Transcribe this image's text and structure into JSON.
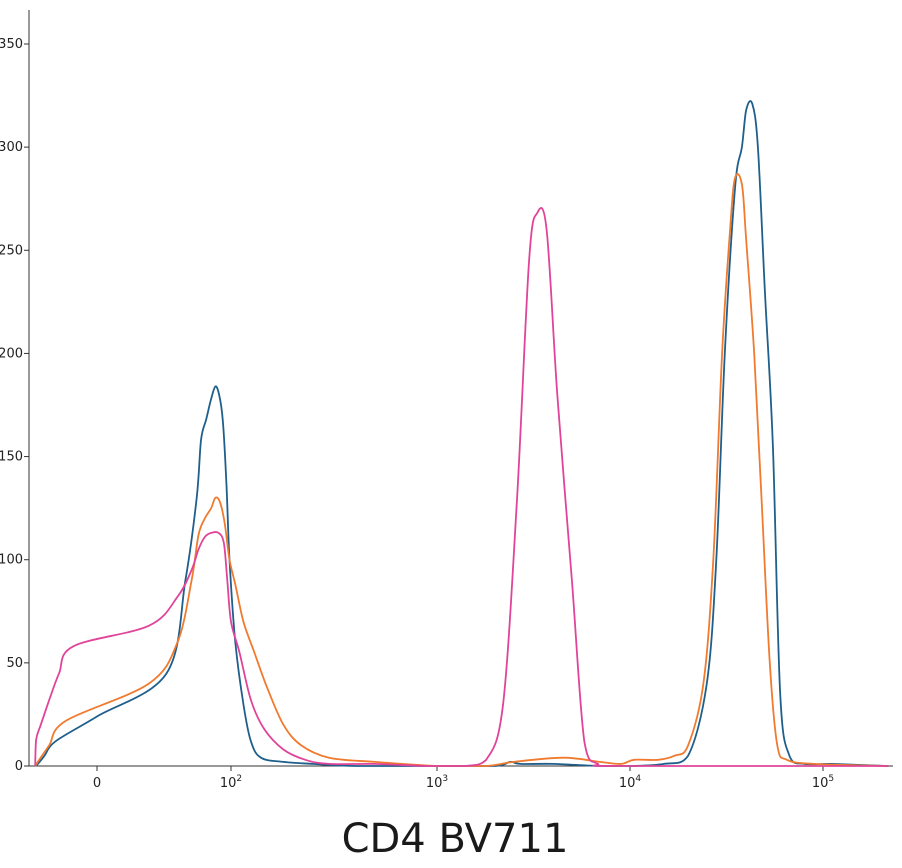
{
  "chart_data": {
    "type": "line",
    "title": "",
    "xlabel": "CD4 BV711",
    "ylabel": "",
    "x_scale": "biexponential",
    "xlim": [
      -40,
      210000
    ],
    "ylim": [
      0,
      350
    ],
    "grid": false,
    "legend": "none",
    "y_ticks": [
      0,
      50,
      100,
      150,
      200,
      250,
      300,
      350
    ],
    "x_ticks": [
      {
        "value": 0,
        "base": "0",
        "exp": ""
      },
      {
        "value": 100,
        "base": "10",
        "exp": "2"
      },
      {
        "value": 1000,
        "base": "10",
        "exp": "3"
      },
      {
        "value": 10000,
        "base": "10",
        "exp": "4"
      },
      {
        "value": 100000,
        "base": "10",
        "exp": "5"
      }
    ],
    "series": [
      {
        "color": "#1f5f8b",
        "points": [
          [
            -35,
            0
          ],
          [
            -30,
            1
          ],
          [
            -20,
            5
          ],
          [
            -10,
            12
          ],
          [
            0,
            24
          ],
          [
            10,
            45
          ],
          [
            20,
            90
          ],
          [
            30,
            130
          ],
          [
            35,
            158
          ],
          [
            42,
            168
          ],
          [
            50,
            178
          ],
          [
            58,
            184
          ],
          [
            66,
            180
          ],
          [
            75,
            168
          ],
          [
            85,
            138
          ],
          [
            95,
            100
          ],
          [
            105,
            60
          ],
          [
            115,
            30
          ],
          [
            125,
            12
          ],
          [
            140,
            4
          ],
          [
            180,
            2
          ],
          [
            250,
            1
          ],
          [
            400,
            0
          ],
          [
            1000,
            0
          ],
          [
            2000,
            0
          ],
          [
            2400,
            2
          ],
          [
            2700,
            1
          ],
          [
            4000,
            1
          ],
          [
            7000,
            0
          ],
          [
            10000,
            0
          ],
          [
            15000,
            1
          ],
          [
            20000,
            5
          ],
          [
            25000,
            40
          ],
          [
            28000,
            100
          ],
          [
            31000,
            200
          ],
          [
            35000,
            280
          ],
          [
            38000,
            300
          ],
          [
            40000,
            318
          ],
          [
            43000,
            321
          ],
          [
            46000,
            300
          ],
          [
            50000,
            230
          ],
          [
            55000,
            155
          ],
          [
            60000,
            35
          ],
          [
            67000,
            5
          ],
          [
            80000,
            1
          ],
          [
            110000,
            1
          ],
          [
            200000,
            0
          ]
        ]
      },
      {
        "color": "#f07a2e",
        "points": [
          [
            -35,
            0
          ],
          [
            -30,
            2
          ],
          [
            -15,
            10
          ],
          [
            -5,
            22
          ],
          [
            5,
            40
          ],
          [
            15,
            60
          ],
          [
            25,
            90
          ],
          [
            32,
            112
          ],
          [
            40,
            120
          ],
          [
            50,
            125
          ],
          [
            58,
            130
          ],
          [
            68,
            128
          ],
          [
            80,
            118
          ],
          [
            95,
            100
          ],
          [
            105,
            88
          ],
          [
            115,
            70
          ],
          [
            130,
            55
          ],
          [
            150,
            38
          ],
          [
            180,
            20
          ],
          [
            220,
            10
          ],
          [
            300,
            4
          ],
          [
            500,
            2
          ],
          [
            1000,
            0
          ],
          [
            1800,
            0
          ],
          [
            2500,
            2
          ],
          [
            4500,
            4
          ],
          [
            7000,
            2
          ],
          [
            9000,
            1
          ],
          [
            10500,
            3
          ],
          [
            14000,
            3
          ],
          [
            17000,
            5
          ],
          [
            20000,
            10
          ],
          [
            24000,
            40
          ],
          [
            27000,
            100
          ],
          [
            30000,
            200
          ],
          [
            33000,
            260
          ],
          [
            35000,
            285
          ],
          [
            38000,
            282
          ],
          [
            40000,
            255
          ],
          [
            44000,
            200
          ],
          [
            48000,
            130
          ],
          [
            53000,
            50
          ],
          [
            58000,
            10
          ],
          [
            65000,
            3
          ],
          [
            90000,
            1
          ],
          [
            200000,
            0
          ]
        ]
      },
      {
        "color": "#e0449a",
        "points": [
          [
            -35,
            0
          ],
          [
            -33,
            13
          ],
          [
            -25,
            20
          ],
          [
            -15,
            32
          ],
          [
            -8,
            45
          ],
          [
            -3,
            58
          ],
          [
            5,
            68
          ],
          [
            15,
            82
          ],
          [
            25,
            95
          ],
          [
            32,
            105
          ],
          [
            40,
            111
          ],
          [
            50,
            113
          ],
          [
            65,
            113
          ],
          [
            78,
            108
          ],
          [
            88,
            90
          ],
          [
            100,
            70
          ],
          [
            110,
            55
          ],
          [
            125,
            32
          ],
          [
            145,
            18
          ],
          [
            180,
            8
          ],
          [
            230,
            3
          ],
          [
            300,
            1
          ],
          [
            500,
            1
          ],
          [
            900,
            0
          ],
          [
            1400,
            0
          ],
          [
            1800,
            3
          ],
          [
            2200,
            30
          ],
          [
            2600,
            130
          ],
          [
            3000,
            245
          ],
          [
            3300,
            268
          ],
          [
            3700,
            260
          ],
          [
            4200,
            180
          ],
          [
            5000,
            90
          ],
          [
            5800,
            12
          ],
          [
            6800,
            1
          ],
          [
            9000,
            0
          ],
          [
            200000,
            0
          ]
        ]
      }
    ]
  }
}
